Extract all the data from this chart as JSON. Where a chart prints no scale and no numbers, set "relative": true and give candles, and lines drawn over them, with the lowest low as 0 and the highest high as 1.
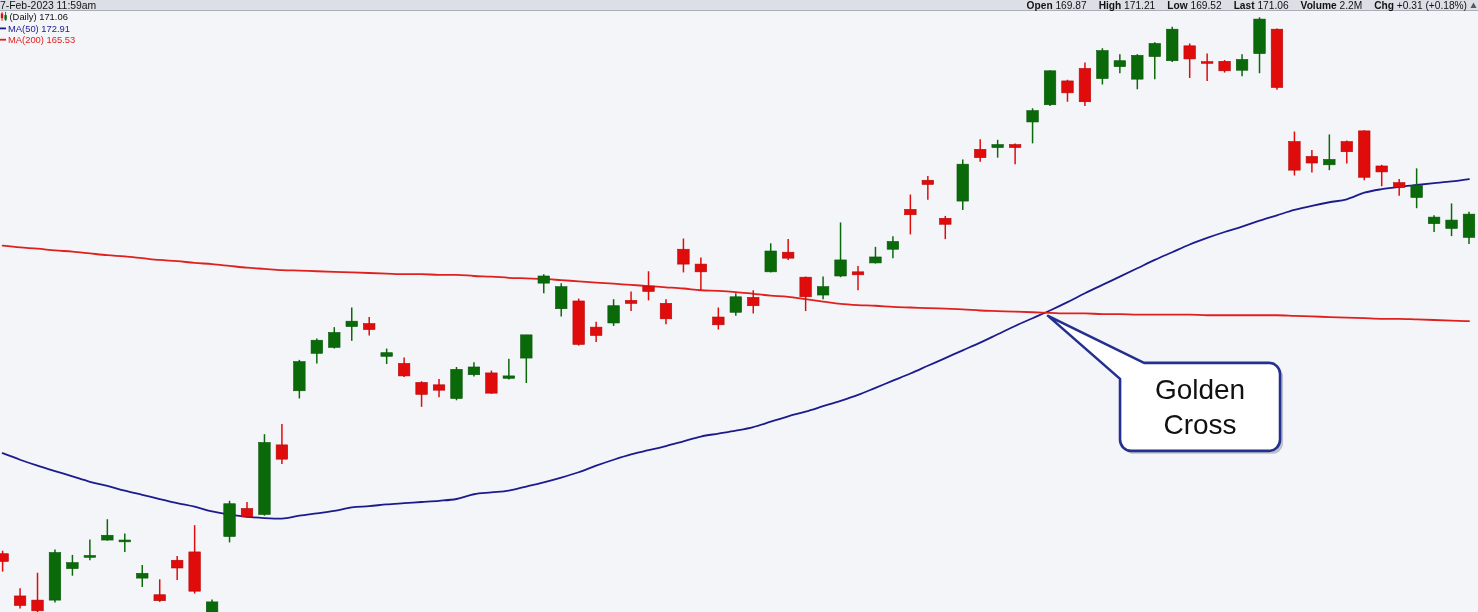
{
  "chart_data": {
    "type": "candlestick",
    "relative": true,
    "legend": "top left",
    "categories": [
      null,
      null,
      null,
      null,
      null,
      null,
      null,
      null,
      null,
      null,
      null,
      null,
      null,
      null,
      null,
      null,
      null,
      null,
      null,
      null,
      null,
      null,
      null,
      null,
      null,
      null,
      null,
      null,
      null,
      null,
      null,
      null,
      null,
      null,
      null,
      null,
      null,
      null,
      null,
      null,
      null,
      null,
      null,
      null,
      null,
      null,
      null,
      null,
      null,
      null,
      null,
      null,
      null,
      null,
      null,
      null,
      null,
      null,
      null,
      null,
      null,
      null,
      null,
      null,
      null,
      null,
      null,
      null,
      null,
      null,
      null,
      null,
      null,
      null,
      null,
      null,
      null,
      null,
      null,
      null,
      null,
      null,
      null,
      null,
      null
    ],
    "series": [
      {
        "name": "(Daily) 171.06",
        "colors": [
          "#e00b0b",
          "#e00b0b",
          "#e00b0b",
          "#0a6a0a",
          "#0a6a0a",
          "#0a6a0a",
          "#0a6a0a",
          "#0a6a0a",
          "#0a6a0a",
          "#e00b0b",
          "#e00b0b",
          "#e00b0b",
          "#0a6a0a",
          "#0a6a0a",
          "#e00b0b",
          "#0a6a0a",
          "#e00b0b",
          "#0a6a0a",
          "#0a6a0a",
          "#0a6a0a",
          "#0a6a0a",
          "#e00b0b",
          "#0a6a0a",
          "#e00b0b",
          "#e00b0b",
          "#e00b0b",
          "#0a6a0a",
          "#0a6a0a",
          "#e00b0b",
          "#0a6a0a",
          "#0a6a0a",
          "#0a6a0a",
          "#0a6a0a",
          "#e00b0b",
          "#e00b0b",
          "#0a6a0a",
          "#e00b0b",
          "#e00b0b",
          "#e00b0b",
          "#e00b0b",
          "#e00b0b",
          "#e00b0b",
          "#0a6a0a",
          "#e00b0b",
          "#0a6a0a",
          "#e00b0b",
          "#e00b0b",
          "#0a6a0a",
          "#0a6a0a",
          "#e00b0b",
          "#0a6a0a",
          "#0a6a0a",
          "#e00b0b",
          "#e00b0b",
          "#e00b0b",
          "#0a6a0a",
          "#e00b0b",
          "#0a6a0a",
          "#e00b0b",
          "#0a6a0a",
          "#0a6a0a",
          "#e00b0b",
          "#e00b0b",
          "#0a6a0a",
          "#0a6a0a",
          "#0a6a0a",
          "#0a6a0a",
          "#0a6a0a",
          "#e00b0b",
          "#e00b0b",
          "#e00b0b",
          "#0a6a0a",
          "#0a6a0a",
          "#e00b0b",
          "#e00b0b",
          "#e00b0b",
          "#0a6a0a",
          "#e00b0b",
          "#e00b0b",
          "#e00b0b",
          "#e00b0b",
          "#0a6a0a",
          "#0a6a0a",
          "#0a6a0a",
          "#0a6a0a"
        ],
        "ohlc": [
          [
            0.098,
            0.103,
            0.068,
            0.085
          ],
          [
            0.027,
            0.04,
            0.006,
            0.011
          ],
          [
            0.02,
            0.066,
            0,
            0.002
          ],
          [
            0.02,
            0.105,
            0.016,
            0.1
          ],
          [
            0.073,
            0.096,
            0.061,
            0.083
          ],
          [
            0.092,
            0.122,
            0.087,
            0.095
          ],
          [
            0.121,
            0.156,
            0.12,
            0.129
          ],
          [
            0.118,
            0.132,
            0.101,
            0.121
          ],
          [
            0.057,
            0.079,
            0.042,
            0.065
          ],
          [
            0.029,
            0.055,
            0.017,
            0.019
          ],
          [
            0.087,
            0.094,
            0.054,
            0.074
          ],
          [
            0.101,
            0.146,
            0.031,
            0.035
          ],
          [
            0,
            0.021,
            0,
            0.017
          ],
          [
            0.127,
            0.187,
            0.117,
            0.182
          ],
          [
            0.174,
            0.185,
            0.158,
            0.16
          ],
          [
            0.164,
            0.299,
            0.162,
            0.285
          ],
          [
            0.281,
            0.316,
            0.249,
            0.257
          ],
          [
            0.372,
            0.424,
            0.359,
            0.421
          ],
          [
            0.435,
            0.46,
            0.418,
            0.457
          ],
          [
            0.445,
            0.479,
            0.443,
            0.47
          ],
          [
            0.48,
            0.512,
            0.456,
            0.489
          ],
          [
            0.485,
            0.496,
            0.465,
            0.475
          ],
          [
            0.43,
            0.443,
            0.417,
            0.436
          ],
          [
            0.418,
            0.428,
            0.395,
            0.397
          ],
          [
            0.386,
            0.388,
            0.345,
            0.366
          ],
          [
            0.382,
            0.392,
            0.361,
            0.373
          ],
          [
            0.359,
            0.412,
            0.356,
            0.408
          ],
          [
            0.399,
            0.42,
            0.396,
            0.412
          ],
          [
            0.402,
            0.406,
            0.367,
            0.368
          ],
          [
            0.393,
            0.426,
            0.391,
            0.397
          ],
          [
            0.427,
            0.466,
            0.385,
            0.466
          ],
          [
            0.553,
            0.568,
            0.536,
            0.565
          ],
          [
            0.51,
            0.553,
            0.497,
            0.547
          ],
          [
            0.523,
            0.527,
            0.448,
            0.45
          ],
          [
            0.479,
            0.488,
            0.454,
            0.465
          ],
          [
            0.486,
            0.526,
            0.481,
            0.515
          ],
          [
            0.524,
            0.539,
            0.506,
            0.519
          ],
          [
            0.548,
            0.573,
            0.524,
            0.539
          ],
          [
            0.519,
            0.526,
            0.484,
            0.493
          ],
          [
            0.61,
            0.628,
            0.571,
            0.585
          ],
          [
            0.585,
            0.596,
            0.541,
            0.572
          ],
          [
            0.496,
            0.512,
            0.475,
            0.483
          ],
          [
            0.504,
            0.536,
            0.498,
            0.53
          ],
          [
            0.529,
            0.541,
            0.502,
            0.515
          ],
          [
            0.572,
            0.62,
            0.571,
            0.607
          ],
          [
            0.605,
            0.627,
            0.592,
            0.595
          ],
          [
            0.563,
            0.564,
            0.506,
            0.53
          ],
          [
            0.533,
            0.564,
            0.526,
            0.547
          ],
          [
            0.565,
            0.655,
            0.563,
            0.592
          ],
          [
            0.572,
            0.582,
            0.541,
            0.567
          ],
          [
            0.587,
            0.614,
            0.586,
            0.597
          ],
          [
            0.61,
            0.632,
            0.595,
            0.623
          ],
          [
            0.677,
            0.702,
            0.635,
            0.668
          ],
          [
            0.726,
            0.733,
            0.693,
            0.719
          ],
          [
            0.662,
            0.666,
            0.627,
            0.652
          ],
          [
            0.691,
            0.761,
            0.676,
            0.753
          ],
          [
            0.778,
            0.795,
            0.757,
            0.764
          ],
          [
            0.781,
            0.794,
            0.764,
            0.786
          ],
          [
            0.786,
            0.788,
            0.753,
            0.781
          ],
          [
            0.824,
            0.847,
            0.788,
            0.843
          ],
          [
            0.853,
            0.911,
            0.851,
            0.91
          ],
          [
            0.893,
            0.895,
            0.858,
            0.873
          ],
          [
            0.914,
            0.924,
            0.851,
            0.858
          ],
          [
            0.897,
            0.948,
            0.887,
            0.944
          ],
          [
            0.917,
            0.938,
            0.906,
            0.927
          ],
          [
            0.896,
            0.938,
            0.879,
            0.936
          ],
          [
            0.934,
            0.958,
            0.896,
            0.956
          ],
          [
            0.927,
            0.984,
            0.925,
            0.98
          ],
          [
            0.952,
            0.956,
            0.898,
            0.93
          ],
          [
            0.925,
            0.939,
            0.893,
            0.923
          ],
          [
            0.926,
            0.928,
            0.907,
            0.91
          ],
          [
            0.911,
            0.938,
            0.901,
            0.929
          ],
          [
            0.939,
            1.0,
            0.906,
            0.997
          ],
          [
            0.98,
            0.981,
            0.878,
            0.882
          ],
          [
            0.791,
            0.808,
            0.734,
            0.743
          ],
          [
            0.766,
            0.777,
            0.739,
            0.755
          ],
          [
            0.752,
            0.803,
            0.743,
            0.761
          ],
          [
            0.791,
            0.793,
            0.754,
            0.774
          ],
          [
            0.809,
            0.81,
            0.726,
            0.731
          ],
          [
            0.75,
            0.752,
            0.716,
            0.74
          ],
          [
            0.722,
            0.728,
            0.7,
            0.714
          ],
          [
            0.697,
            0.746,
            0.679,
            0.717
          ],
          [
            0.653,
            0.667,
            0.639,
            0.664
          ],
          [
            0.645,
            0.687,
            0.632,
            0.659
          ],
          [
            0.63,
            0.673,
            0.619,
            0.669
          ]
        ]
      },
      {
        "type": "line",
        "name": "MA(50) 172.91",
        "color": "#1b1b8e",
        "values": [
          0.267,
          0.256,
          0.246,
          0.237,
          0.228,
          0.219,
          0.212,
          0.204,
          0.197,
          0.19,
          0.183,
          0.177,
          0.169,
          null,
          0.16,
          0.158,
          0.157,
          0.162,
          0.166,
          0.17,
          0.176,
          0.178,
          0.181,
          0.183,
          0.185,
          0.187,
          0.19,
          0.198,
          0.201,
          0.204,
          0.211,
          0.218,
          0.226,
          0.235,
          0.246,
          0.256,
          0.265,
          0.272,
          0.279,
          0.287,
          0.295,
          0.3,
          0.305,
          0.311,
          0.32,
          0.329,
          0.337,
          0.346,
          0.355,
          0.365,
          0.377,
          0.389,
          0.401,
          0.414,
          0.427,
          0.44,
          0.453,
          0.467,
          0.481,
          0.494,
          0.507,
          0.521,
          0.536,
          0.55,
          0.564,
          0.578,
          0.592,
          0.605,
          0.618,
          0.629,
          0.639,
          0.648,
          0.658,
          0.667,
          0.676,
          0.683,
          0.689,
          0.694,
          0.705,
          0.711,
          0.715,
          0.718,
          0.721,
          0.724,
          0.728
        ]
      },
      {
        "type": "line",
        "name": "MA(200) 165.53",
        "color": "#e0201e",
        "values": [
          0.616,
          0.613,
          0.611,
          0.608,
          0.606,
          0.603,
          0.6,
          0.598,
          0.595,
          0.592,
          0.59,
          0.587,
          0.585,
          0.582,
          0.579,
          0.577,
          0.575,
          0.574,
          0.573,
          0.572,
          0.571,
          0.57,
          0.569,
          0.568,
          0.568,
          0.567,
          0.567,
          0.565,
          0.564,
          0.562,
          0.561,
          0.56,
          0.558,
          0.556,
          0.554,
          0.552,
          0.55,
          0.548,
          0.546,
          0.544,
          0.541,
          0.54,
          0.538,
          0.535,
          0.532,
          0.53,
          0.526,
          0.522,
          0.518,
          0.516,
          0.515,
          0.513,
          0.512,
          0.511,
          0.51,
          0.509,
          0.507,
          0.506,
          0.505,
          0.504,
          0.503,
          0.502,
          0.502,
          0.501,
          0.501,
          0.5,
          0.5,
          0.5,
          0.5,
          0.499,
          0.499,
          0.499,
          0.499,
          0.499,
          0.498,
          0.497,
          0.496,
          0.495,
          0.494,
          0.493,
          0.493,
          0.492,
          0.491,
          0.49,
          0.489
        ]
      }
    ],
    "annotations": [
      "7-Feb-2023 11:59am",
      "Open 169.87",
      "High 171.21",
      "Low 169.52",
      "Last 171.06",
      "Volume 2.2M",
      "Chg +0.31 (+0.18%)",
      {
        "text": "Golden Cross",
        "y": 0.503
      }
    ]
  }
}
